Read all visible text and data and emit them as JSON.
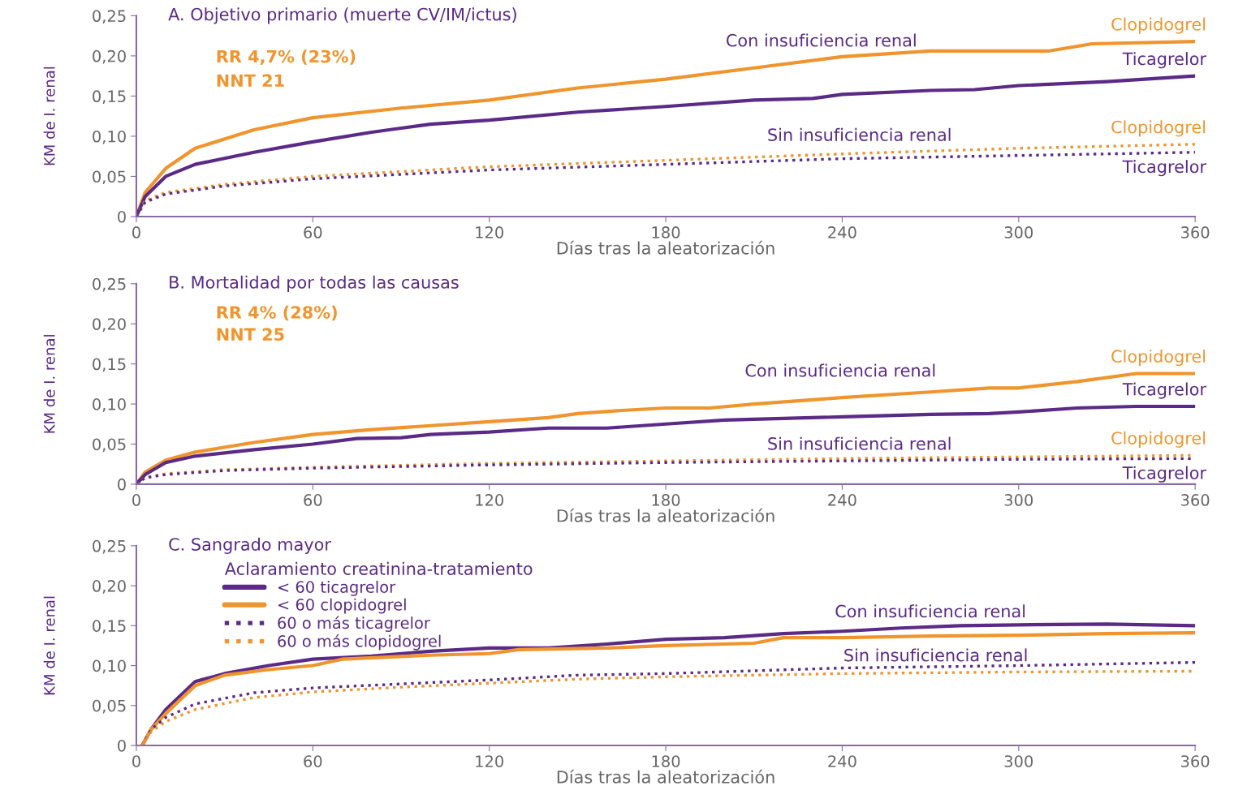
{
  "chart_data": [
    {
      "type": "line",
      "title": "A. Objetivo primario (muerte CV/IM/ictus)",
      "xlabel": "Días tras la aleatorización",
      "ylabel": "KM de I. renal",
      "xlim": [
        0,
        360
      ],
      "xticks": [
        0,
        60,
        120,
        180,
        240,
        300,
        360
      ],
      "ylim": [
        0,
        0.25
      ],
      "yticks": [
        {
          "value": 0,
          "label": "0"
        },
        {
          "value": 0.05,
          "label": "0,05"
        },
        {
          "value": 0.1,
          "label": "0,10"
        },
        {
          "value": 0.15,
          "label": "0,15"
        },
        {
          "value": 0.2,
          "label": "0,20"
        },
        {
          "value": 0.25,
          "label": "0,25"
        }
      ],
      "grid": false,
      "legend": false,
      "annotations": [
        "RR 4,7% (23%)",
        "NNT 21",
        "Con insuficiencia renal",
        "Sin insuficiencia renal"
      ],
      "series": [
        {
          "name": "Clopidogrel",
          "color": "#f0952d",
          "line_style": "solid",
          "x": [
            0,
            3,
            10,
            20,
            40,
            60,
            90,
            120,
            150,
            180,
            210,
            240,
            270,
            300,
            310,
            325,
            360
          ],
          "values": [
            0,
            0.03,
            0.06,
            0.085,
            0.108,
            0.123,
            0.135,
            0.145,
            0.16,
            0.171,
            0.185,
            0.199,
            0.206,
            0.206,
            0.206,
            0.215,
            0.218
          ]
        },
        {
          "name": "Ticagrelor",
          "color": "#5b2a86",
          "line_style": "solid",
          "x": [
            0,
            3,
            10,
            20,
            40,
            60,
            80,
            90,
            100,
            120,
            150,
            180,
            210,
            230,
            240,
            270,
            285,
            300,
            330,
            360
          ],
          "values": [
            0,
            0.025,
            0.05,
            0.065,
            0.08,
            0.093,
            0.105,
            0.11,
            0.115,
            0.12,
            0.13,
            0.137,
            0.145,
            0.147,
            0.152,
            0.157,
            0.158,
            0.163,
            0.168,
            0.175
          ]
        },
        {
          "name": "Clopidogrel",
          "color": "#f0952d",
          "line_style": "dotted",
          "x": [
            0,
            3,
            10,
            30,
            60,
            120,
            180,
            240,
            300,
            360
          ],
          "values": [
            0,
            0.02,
            0.03,
            0.04,
            0.05,
            0.062,
            0.07,
            0.078,
            0.085,
            0.09
          ]
        },
        {
          "name": "Ticagrelor",
          "color": "#5b2a86",
          "line_style": "dotted",
          "x": [
            0,
            3,
            10,
            30,
            60,
            120,
            180,
            240,
            300,
            360
          ],
          "values": [
            0,
            0.018,
            0.028,
            0.038,
            0.047,
            0.058,
            0.065,
            0.072,
            0.076,
            0.08
          ]
        }
      ]
    },
    {
      "type": "line",
      "title": "B. Mortalidad por todas las causas",
      "xlabel": "Días tras la aleatorización",
      "ylabel": "KM de I. renal",
      "xlim": [
        0,
        360
      ],
      "xticks": [
        0,
        60,
        120,
        180,
        240,
        300,
        360
      ],
      "ylim": [
        0,
        0.25
      ],
      "yticks": [
        {
          "value": 0,
          "label": "0"
        },
        {
          "value": 0.05,
          "label": "0,05"
        },
        {
          "value": 0.1,
          "label": "0,10"
        },
        {
          "value": 0.15,
          "label": "0,15"
        },
        {
          "value": 0.2,
          "label": "0,20"
        },
        {
          "value": 0.25,
          "label": "0,25"
        }
      ],
      "grid": false,
      "legend": false,
      "annotations": [
        "RR 4% (28%)",
        "NNT 25",
        "Con insuficiencia renal",
        "Sin insuficiencia renal"
      ],
      "series": [
        {
          "name": "Clopidogrel",
          "color": "#f0952d",
          "line_style": "solid",
          "x": [
            0,
            3,
            10,
            20,
            40,
            60,
            80,
            100,
            120,
            140,
            150,
            165,
            180,
            195,
            210,
            240,
            270,
            290,
            300,
            320,
            340,
            360
          ],
          "values": [
            0,
            0.015,
            0.03,
            0.04,
            0.052,
            0.062,
            0.068,
            0.073,
            0.078,
            0.083,
            0.088,
            0.092,
            0.095,
            0.095,
            0.1,
            0.108,
            0.115,
            0.12,
            0.12,
            0.128,
            0.138,
            0.138
          ]
        },
        {
          "name": "Ticagrelor",
          "color": "#5b2a86",
          "line_style": "solid",
          "x": [
            0,
            3,
            10,
            20,
            40,
            60,
            75,
            90,
            100,
            120,
            140,
            160,
            180,
            200,
            240,
            270,
            290,
            300,
            320,
            340,
            360
          ],
          "values": [
            0,
            0.012,
            0.027,
            0.035,
            0.043,
            0.05,
            0.057,
            0.058,
            0.062,
            0.065,
            0.07,
            0.07,
            0.075,
            0.08,
            0.084,
            0.087,
            0.088,
            0.09,
            0.095,
            0.097,
            0.097
          ]
        },
        {
          "name": "Clopidogrel",
          "color": "#f0952d",
          "line_style": "dotted",
          "x": [
            0,
            3,
            10,
            30,
            60,
            120,
            180,
            240,
            300,
            360
          ],
          "values": [
            0,
            0.008,
            0.013,
            0.018,
            0.021,
            0.026,
            0.029,
            0.032,
            0.034,
            0.036
          ]
        },
        {
          "name": "Ticagrelor",
          "color": "#5b2a86",
          "line_style": "dotted",
          "x": [
            0,
            3,
            10,
            30,
            60,
            120,
            180,
            240,
            300,
            360
          ],
          "values": [
            0,
            0.008,
            0.012,
            0.017,
            0.02,
            0.024,
            0.027,
            0.029,
            0.031,
            0.032
          ]
        }
      ]
    },
    {
      "type": "line",
      "title": "C. Sangrado mayor",
      "xlabel": "Días tras la aleatorización",
      "ylabel": "KM de I. renal",
      "legend_title": "Aclaramiento creatinina-tratamiento",
      "xlim": [
        0,
        360
      ],
      "xticks": [
        0,
        60,
        120,
        180,
        240,
        300,
        360
      ],
      "ylim": [
        0,
        0.25
      ],
      "yticks": [
        {
          "value": 0,
          "label": "0"
        },
        {
          "value": 0.05,
          "label": "0,05"
        },
        {
          "value": 0.1,
          "label": "0,10"
        },
        {
          "value": 0.15,
          "label": "0,15"
        },
        {
          "value": 0.2,
          "label": "0,20"
        },
        {
          "value": 0.25,
          "label": "0,25"
        }
      ],
      "grid": false,
      "legend": "top left",
      "annotations": [
        "Con insuficiencia renal",
        "Sin insuficiencia renal"
      ],
      "series": [
        {
          "name": "< 60 ticagrelor",
          "color": "#5b2a86",
          "line_style": "solid",
          "x": [
            2,
            5,
            10,
            20,
            30,
            45,
            60,
            80,
            100,
            120,
            140,
            160,
            180,
            200,
            220,
            240,
            260,
            280,
            300,
            330,
            360
          ],
          "values": [
            0,
            0.02,
            0.045,
            0.08,
            0.09,
            0.1,
            0.108,
            0.112,
            0.118,
            0.122,
            0.122,
            0.127,
            0.133,
            0.135,
            0.14,
            0.143,
            0.147,
            0.15,
            0.151,
            0.152,
            0.15
          ]
        },
        {
          "name": "< 60 clopidogrel",
          "color": "#f0952d",
          "line_style": "solid",
          "x": [
            2,
            5,
            10,
            20,
            30,
            45,
            60,
            70,
            100,
            120,
            130,
            160,
            180,
            210,
            220,
            240,
            270,
            300,
            330,
            360
          ],
          "values": [
            0,
            0.02,
            0.04,
            0.075,
            0.088,
            0.095,
            0.1,
            0.108,
            0.113,
            0.115,
            0.12,
            0.122,
            0.125,
            0.128,
            0.135,
            0.135,
            0.137,
            0.138,
            0.14,
            0.141
          ]
        },
        {
          "name": "60 o más ticagrelor",
          "color": "#5b2a86",
          "line_style": "dotted",
          "x": [
            2,
            5,
            10,
            20,
            40,
            60,
            90,
            120,
            150,
            180,
            240,
            300,
            360
          ],
          "values": [
            0,
            0.02,
            0.035,
            0.052,
            0.066,
            0.072,
            0.077,
            0.082,
            0.088,
            0.09,
            0.097,
            0.1,
            0.104
          ]
        },
        {
          "name": "60 o más clopidogrel",
          "color": "#f0952d",
          "line_style": "dotted",
          "x": [
            2,
            5,
            10,
            20,
            40,
            60,
            90,
            120,
            150,
            180,
            240,
            300,
            360
          ],
          "values": [
            0,
            0.017,
            0.03,
            0.045,
            0.06,
            0.067,
            0.073,
            0.078,
            0.083,
            0.086,
            0.09,
            0.092,
            0.093
          ]
        }
      ]
    }
  ]
}
